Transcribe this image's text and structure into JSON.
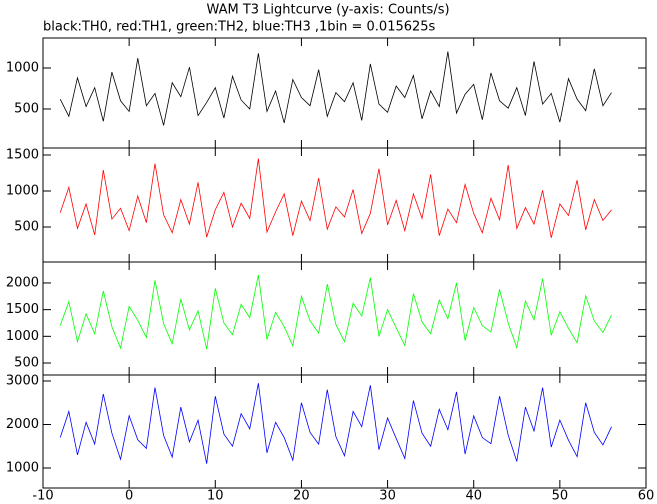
{
  "chart_data": [
    {
      "type": "line",
      "title": "WAM T3 Lightcurve (y-axis: Counts/s)",
      "subtitle": "black:TH0, red:TH1, green:TH2, blue:TH3 ,1bin = 0.015625s",
      "color": "#000000",
      "x": [
        -8,
        -7,
        -6,
        -5,
        -4,
        -3,
        -2,
        -1,
        0,
        1,
        2,
        3,
        4,
        5,
        6,
        7,
        8,
        9,
        10,
        11,
        12,
        13,
        14,
        15,
        16,
        17,
        18,
        19,
        20,
        21,
        22,
        23,
        24,
        25,
        26,
        27,
        28,
        29,
        30,
        31,
        32,
        33,
        34,
        35,
        36,
        37,
        38,
        39,
        40,
        41,
        42,
        43,
        44,
        45,
        46,
        47,
        48,
        49,
        50,
        51,
        52,
        53,
        54,
        55,
        56
      ],
      "values": [
        620,
        410,
        880,
        530,
        760,
        350,
        950,
        600,
        470,
        1120,
        540,
        690,
        300,
        820,
        650,
        1010,
        420,
        580,
        760,
        390,
        900,
        610,
        500,
        1180,
        470,
        720,
        330,
        860,
        640,
        540,
        980,
        410,
        700,
        590,
        820,
        360,
        1050,
        560,
        460,
        780,
        640,
        910,
        380,
        720,
        530,
        1200,
        450,
        680,
        800,
        370,
        940,
        600,
        510,
        760,
        420,
        1080,
        560,
        690,
        340,
        870,
        620,
        480,
        990,
        540,
        700
      ],
      "xlim": [
        -10,
        60
      ],
      "ylim": [
        24,
        1366
      ],
      "yticks": [
        500,
        1000
      ]
    },
    {
      "type": "line",
      "color": "#ff0000",
      "x": [
        -8,
        -7,
        -6,
        -5,
        -4,
        -3,
        -2,
        -1,
        0,
        1,
        2,
        3,
        4,
        5,
        6,
        7,
        8,
        9,
        10,
        11,
        12,
        13,
        14,
        15,
        16,
        17,
        18,
        19,
        20,
        21,
        22,
        23,
        24,
        25,
        26,
        27,
        28,
        29,
        30,
        31,
        32,
        33,
        34,
        35,
        36,
        37,
        38,
        39,
        40,
        41,
        42,
        43,
        44,
        45,
        46,
        47,
        48,
        49,
        50,
        51,
        52,
        53,
        54,
        55,
        56
      ],
      "values": [
        700,
        1050,
        480,
        820,
        390,
        1290,
        610,
        760,
        450,
        930,
        560,
        1380,
        670,
        420,
        880,
        540,
        1120,
        360,
        740,
        980,
        500,
        830,
        620,
        1450,
        430,
        710,
        960,
        380,
        860,
        590,
        1180,
        470,
        780,
        640,
        1020,
        410,
        690,
        1310,
        530,
        870,
        450,
        960,
        620,
        1230,
        380,
        750,
        560,
        1090,
        690,
        420,
        900,
        600,
        1360,
        480,
        770,
        540,
        1010,
        350,
        820,
        660,
        1150,
        460,
        880,
        590,
        740
      ],
      "xlim": [
        -10,
        60
      ],
      "ylim": [
        14,
        1597
      ],
      "yticks": [
        500,
        1000,
        1500
      ]
    },
    {
      "type": "line",
      "color": "#00ff00",
      "x": [
        -8,
        -7,
        -6,
        -5,
        -4,
        -3,
        -2,
        -1,
        0,
        1,
        2,
        3,
        4,
        5,
        6,
        7,
        8,
        9,
        10,
        11,
        12,
        13,
        14,
        15,
        16,
        17,
        18,
        19,
        20,
        21,
        22,
        23,
        24,
        25,
        26,
        27,
        28,
        29,
        30,
        31,
        32,
        33,
        34,
        35,
        36,
        37,
        38,
        39,
        40,
        41,
        42,
        43,
        44,
        45,
        46,
        47,
        48,
        49,
        50,
        51,
        52,
        53,
        54,
        55,
        56
      ],
      "values": [
        1200,
        1650,
        900,
        1420,
        1050,
        1850,
        1180,
        780,
        1560,
        1300,
        980,
        2050,
        1240,
        860,
        1700,
        1120,
        1480,
        760,
        1900,
        1250,
        1030,
        1600,
        1350,
        2150,
        940,
        1450,
        1180,
        820,
        1750,
        1290,
        1060,
        1980,
        1220,
        900,
        1620,
        1380,
        2100,
        1000,
        1500,
        1160,
        830,
        1800,
        1270,
        1050,
        1680,
        1330,
        2000,
        920,
        1540,
        1200,
        1080,
        1880,
        1250,
        790,
        1660,
        1310,
        2080,
        1020,
        1460,
        1150,
        880,
        1760,
        1290,
        1070,
        1400
      ],
      "xlim": [
        -10,
        60
      ],
      "ylim": [
        275,
        2393
      ],
      "yticks": [
        500,
        1000,
        1500,
        2000
      ]
    },
    {
      "type": "line",
      "color": "#0000ff",
      "x": [
        -8,
        -7,
        -6,
        -5,
        -4,
        -3,
        -2,
        -1,
        0,
        1,
        2,
        3,
        4,
        5,
        6,
        7,
        8,
        9,
        10,
        11,
        12,
        13,
        14,
        15,
        16,
        17,
        18,
        19,
        20,
        21,
        22,
        23,
        24,
        25,
        26,
        27,
        28,
        29,
        30,
        31,
        32,
        33,
        34,
        35,
        36,
        37,
        38,
        39,
        40,
        41,
        42,
        43,
        44,
        45,
        46,
        47,
        48,
        49,
        50,
        51,
        52,
        53,
        54,
        55,
        56
      ],
      "values": [
        1700,
        2300,
        1300,
        2050,
        1550,
        2700,
        1800,
        1200,
        2200,
        1650,
        1450,
        2850,
        1750,
        1250,
        2400,
        1600,
        2100,
        1100,
        2650,
        1780,
        1500,
        2250,
        1900,
        2950,
        1350,
        2050,
        1700,
        1180,
        2500,
        1820,
        1550,
        2800,
        1720,
        1280,
        2300,
        1950,
        2900,
        1420,
        2150,
        1680,
        1220,
        2550,
        1800,
        1500,
        2350,
        1880,
        2750,
        1320,
        2200,
        1700,
        1560,
        2650,
        1760,
        1150,
        2400,
        1850,
        2850,
        1480,
        2100,
        1640,
        1260,
        2500,
        1820,
        1530,
        1950
      ],
      "xlim": [
        -10,
        60
      ],
      "ylim": [
        540,
        3138
      ],
      "yticks": [
        1000,
        2000,
        3000
      ],
      "xticks": [
        -10,
        0,
        10,
        20,
        30,
        40,
        50,
        60
      ]
    }
  ]
}
